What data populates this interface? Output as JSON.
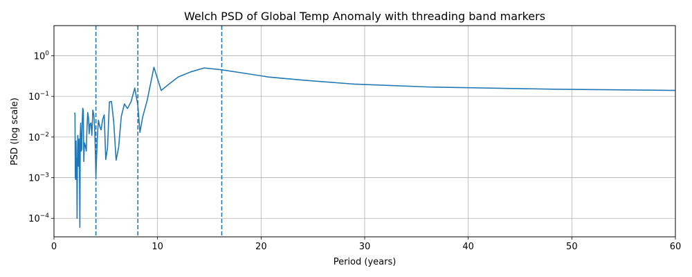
{
  "chart_data": {
    "type": "line",
    "title": "Welch PSD of Global Temp Anomaly with threading band markers",
    "xlabel": "Period (years)",
    "ylabel": "PSD (log scale)",
    "xlim": [
      0,
      60
    ],
    "ylim": [
      3.5e-05,
      5.5
    ],
    "yscale": "log",
    "grid": true,
    "x_ticks": [
      0,
      10,
      20,
      30,
      40,
      50,
      60
    ],
    "y_ticks": [
      {
        "value": 0.0001,
        "base": "10",
        "exp": "−4"
      },
      {
        "value": 0.001,
        "base": "10",
        "exp": "−3"
      },
      {
        "value": 0.01,
        "base": "10",
        "exp": "−2"
      },
      {
        "value": 0.1,
        "base": "10",
        "exp": "−1"
      },
      {
        "value": 1,
        "base": "10",
        "exp": "0"
      }
    ],
    "band_markers": [
      4.05,
      8.1,
      16.2
    ],
    "line_color": "#1f77b4",
    "series": [
      {
        "x": [
          2.0,
          2.03,
          2.06,
          2.1,
          2.13,
          2.16,
          2.2,
          2.23,
          2.27,
          2.3,
          2.34,
          2.38,
          2.42,
          2.46,
          2.5,
          2.54,
          2.58,
          2.63,
          2.68,
          2.73,
          2.78,
          2.83,
          2.88,
          2.94,
          3.0,
          3.06,
          3.12,
          3.19,
          3.26,
          3.33,
          3.4,
          3.48,
          3.57,
          3.66,
          3.75,
          3.85,
          3.95,
          4.05,
          4.17,
          4.29,
          4.42,
          4.55,
          4.7,
          4.85,
          5.0,
          5.17,
          5.35,
          5.55,
          5.76,
          6.0,
          6.24,
          6.5,
          6.8,
          7.1,
          7.45,
          7.8,
          8.1,
          8.3,
          8.55,
          9.0,
          9.65,
          10.35,
          11.1,
          12.0,
          13.2,
          14.5,
          16.2,
          18.1,
          20.7,
          24.1,
          29.0,
          36.2,
          48.3,
          60.0
        ],
        "y": [
          0.04,
          0.035,
          0.001,
          0.0009,
          0.008,
          0.0012,
          0.003,
          0.0001,
          0.004,
          0.011,
          0.0022,
          0.0019,
          0.009,
          0.0019,
          6e-05,
          0.012,
          0.022,
          0.0045,
          0.005,
          0.025,
          0.051,
          0.045,
          0.0025,
          0.0072,
          0.0065,
          0.0055,
          0.0045,
          0.018,
          0.04,
          0.03,
          0.012,
          0.021,
          0.022,
          0.011,
          0.046,
          0.035,
          0.012,
          0.0011,
          0.008,
          0.026,
          0.018,
          0.015,
          0.027,
          0.035,
          0.0028,
          0.0055,
          0.073,
          0.075,
          0.025,
          0.0027,
          0.0055,
          0.032,
          0.065,
          0.05,
          0.075,
          0.16,
          0.06,
          0.013,
          0.03,
          0.08,
          0.52,
          0.14,
          0.2,
          0.3,
          0.4,
          0.5,
          0.45,
          0.38,
          0.3,
          0.25,
          0.2,
          0.17,
          0.15,
          0.14
        ]
      }
    ]
  }
}
